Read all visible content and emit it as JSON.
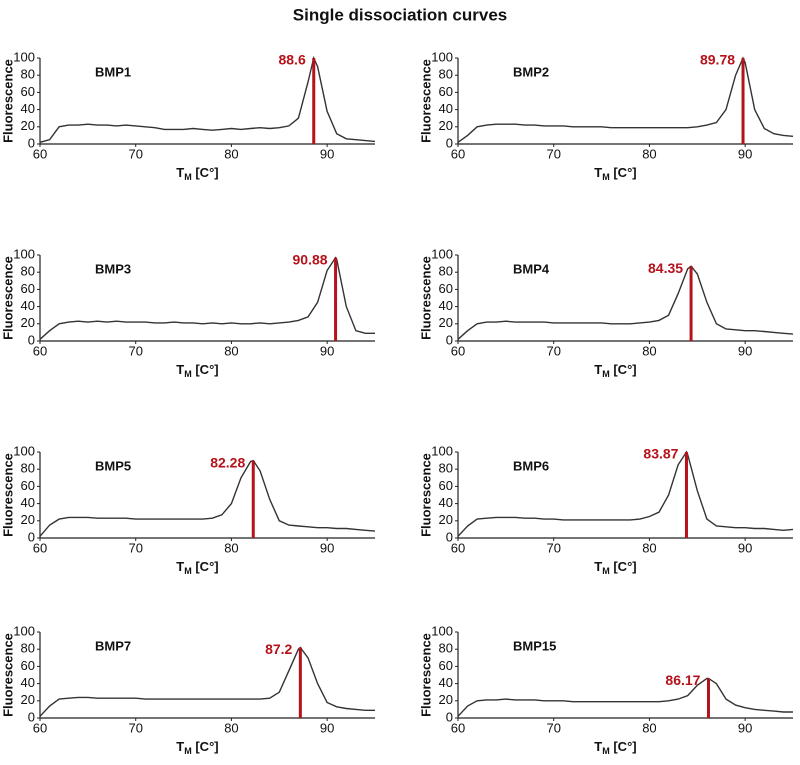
{
  "title": "Single dissociation curves",
  "chart_data": [
    {
      "type": "line",
      "label": "BMP1",
      "ylabel": "Fluorescence",
      "xlabel": [
        "T",
        "M",
        " [C°]"
      ],
      "xlim": [
        60,
        95
      ],
      "ylim": [
        0,
        100
      ],
      "xticks": [
        60,
        70,
        80,
        90
      ],
      "yticks": [
        0,
        20,
        40,
        60,
        80,
        100
      ],
      "color": "#333333",
      "marker": {
        "x": 88.6,
        "y": 100,
        "color": "#b5121b"
      },
      "x": [
        60,
        61,
        62,
        63,
        64,
        65,
        66,
        67,
        68,
        69,
        70,
        71,
        72,
        73,
        74,
        75,
        76,
        77,
        78,
        79,
        80,
        81,
        82,
        83,
        84,
        85,
        86,
        87,
        88,
        88.6,
        89,
        90,
        91,
        92,
        93,
        94,
        95
      ],
      "values": [
        2,
        5,
        20,
        22,
        22,
        23,
        22,
        22,
        21,
        22,
        21,
        20,
        19,
        17,
        17,
        17,
        18,
        17,
        16,
        17,
        18,
        17,
        18,
        19,
        18,
        19,
        21,
        30,
        72,
        100,
        90,
        38,
        12,
        6,
        5,
        4,
        3
      ]
    },
    {
      "type": "line",
      "label": "BMP2",
      "ylabel": "Fluorescence",
      "xlabel": [
        "T",
        "M",
        " [C°]"
      ],
      "xlim": [
        60,
        95
      ],
      "ylim": [
        0,
        100
      ],
      "xticks": [
        60,
        70,
        80,
        90
      ],
      "yticks": [
        0,
        20,
        40,
        60,
        80,
        100
      ],
      "color": "#333333",
      "marker": {
        "x": 89.78,
        "y": 100,
        "color": "#b5121b"
      },
      "x": [
        60,
        61,
        62,
        63,
        64,
        65,
        66,
        67,
        68,
        69,
        70,
        71,
        72,
        73,
        74,
        75,
        76,
        77,
        78,
        79,
        80,
        81,
        82,
        83,
        84,
        85,
        86,
        87,
        88,
        89,
        89.78,
        90,
        91,
        92,
        93,
        94,
        95
      ],
      "values": [
        2,
        10,
        20,
        22,
        23,
        23,
        23,
        22,
        22,
        21,
        21,
        21,
        20,
        20,
        20,
        20,
        19,
        19,
        19,
        19,
        19,
        19,
        19,
        19,
        19,
        20,
        22,
        25,
        40,
        80,
        100,
        95,
        40,
        18,
        12,
        10,
        9
      ]
    },
    {
      "type": "line",
      "label": "BMP3",
      "ylabel": "Fluorescence",
      "xlabel": [
        "T",
        "M",
        " [C°]"
      ],
      "xlim": [
        60,
        95
      ],
      "ylim": [
        0,
        100
      ],
      "xticks": [
        60,
        70,
        80,
        90
      ],
      "yticks": [
        0,
        20,
        40,
        60,
        80,
        100
      ],
      "color": "#333333",
      "marker": {
        "x": 90.88,
        "y": 97,
        "color": "#b5121b"
      },
      "x": [
        60,
        61,
        62,
        63,
        64,
        65,
        66,
        67,
        68,
        69,
        70,
        71,
        72,
        73,
        74,
        75,
        76,
        77,
        78,
        79,
        80,
        81,
        82,
        83,
        84,
        85,
        86,
        87,
        88,
        89,
        90,
        90.88,
        91,
        92,
        93,
        94,
        95
      ],
      "values": [
        2,
        12,
        20,
        22,
        23,
        22,
        23,
        22,
        23,
        22,
        22,
        22,
        21,
        21,
        22,
        21,
        21,
        20,
        21,
        20,
        21,
        20,
        20,
        21,
        20,
        21,
        22,
        24,
        28,
        45,
        82,
        97,
        95,
        40,
        12,
        9,
        9
      ]
    },
    {
      "type": "line",
      "label": "BMP4",
      "ylabel": "Fluorescence",
      "xlabel": [
        "T",
        "M",
        " [C°]"
      ],
      "xlim": [
        60,
        95
      ],
      "ylim": [
        0,
        100
      ],
      "xticks": [
        60,
        70,
        80,
        90
      ],
      "yticks": [
        0,
        20,
        40,
        60,
        80,
        100
      ],
      "color": "#333333",
      "marker": {
        "x": 84.35,
        "y": 87,
        "color": "#b5121b"
      },
      "x": [
        60,
        61,
        62,
        63,
        64,
        65,
        66,
        67,
        68,
        69,
        70,
        71,
        72,
        73,
        74,
        75,
        76,
        77,
        78,
        79,
        80,
        81,
        82,
        83,
        84,
        84.35,
        85,
        86,
        87,
        88,
        89,
        90,
        91,
        92,
        93,
        94,
        95
      ],
      "values": [
        2,
        12,
        20,
        22,
        22,
        23,
        22,
        22,
        22,
        22,
        21,
        21,
        21,
        21,
        21,
        21,
        20,
        20,
        20,
        21,
        22,
        24,
        30,
        55,
        84,
        87,
        78,
        45,
        20,
        14,
        13,
        12,
        12,
        11,
        10,
        9,
        8
      ]
    },
    {
      "type": "line",
      "label": "BMP5",
      "ylabel": "Fluorescence",
      "xlabel": [
        "T",
        "M",
        " [C°]"
      ],
      "xlim": [
        60,
        95
      ],
      "ylim": [
        0,
        100
      ],
      "xticks": [
        60,
        70,
        80,
        90
      ],
      "yticks": [
        0,
        20,
        40,
        60,
        80,
        100
      ],
      "color": "#333333",
      "marker": {
        "x": 82.28,
        "y": 90,
        "color": "#b5121b"
      },
      "x": [
        60,
        61,
        62,
        63,
        64,
        65,
        66,
        67,
        68,
        69,
        70,
        71,
        72,
        73,
        74,
        75,
        76,
        77,
        78,
        79,
        80,
        81,
        82,
        82.28,
        83,
        84,
        85,
        86,
        87,
        88,
        89,
        90,
        91,
        92,
        93,
        94,
        95
      ],
      "values": [
        2,
        15,
        22,
        24,
        24,
        24,
        23,
        23,
        23,
        23,
        22,
        22,
        22,
        22,
        22,
        22,
        22,
        22,
        23,
        27,
        40,
        70,
        89,
        90,
        78,
        45,
        20,
        15,
        14,
        13,
        12,
        12,
        11,
        11,
        10,
        9,
        8
      ]
    },
    {
      "type": "line",
      "label": "BMP6",
      "ylabel": "Fluorescence",
      "xlabel": [
        "T",
        "M",
        " [C°]"
      ],
      "xlim": [
        60,
        95
      ],
      "ylim": [
        0,
        100
      ],
      "xticks": [
        60,
        70,
        80,
        90
      ],
      "yticks": [
        0,
        20,
        40,
        60,
        80,
        100
      ],
      "color": "#333333",
      "marker": {
        "x": 83.87,
        "y": 100,
        "color": "#b5121b"
      },
      "x": [
        60,
        61,
        62,
        63,
        64,
        65,
        66,
        67,
        68,
        69,
        70,
        71,
        72,
        73,
        74,
        75,
        76,
        77,
        78,
        79,
        80,
        81,
        82,
        83,
        83.87,
        84,
        85,
        86,
        87,
        88,
        89,
        90,
        91,
        92,
        93,
        94,
        95
      ],
      "values": [
        2,
        14,
        22,
        23,
        24,
        24,
        24,
        23,
        23,
        22,
        22,
        21,
        21,
        21,
        21,
        21,
        21,
        21,
        21,
        22,
        25,
        30,
        50,
        85,
        100,
        97,
        55,
        22,
        14,
        13,
        12,
        12,
        11,
        11,
        10,
        9,
        10
      ]
    },
    {
      "type": "line",
      "label": "BMP7",
      "ylabel": "Fluorescence",
      "xlabel": [
        "T",
        "M",
        " [C°]"
      ],
      "xlim": [
        60,
        95
      ],
      "ylim": [
        0,
        100
      ],
      "xticks": [
        60,
        70,
        80,
        90
      ],
      "yticks": [
        0,
        20,
        40,
        60,
        80,
        100
      ],
      "color": "#333333",
      "marker": {
        "x": 87.2,
        "y": 82,
        "color": "#b5121b"
      },
      "x": [
        60,
        61,
        62,
        63,
        64,
        65,
        66,
        67,
        68,
        69,
        70,
        71,
        72,
        73,
        74,
        75,
        76,
        77,
        78,
        79,
        80,
        81,
        82,
        83,
        84,
        85,
        86,
        87,
        87.2,
        88,
        89,
        90,
        91,
        92,
        93,
        94,
        95
      ],
      "values": [
        2,
        14,
        22,
        23,
        24,
        24,
        23,
        23,
        23,
        23,
        23,
        22,
        22,
        22,
        22,
        22,
        22,
        22,
        22,
        22,
        22,
        22,
        22,
        22,
        23,
        30,
        55,
        80,
        82,
        70,
        40,
        18,
        13,
        11,
        10,
        9,
        9
      ]
    },
    {
      "type": "line",
      "label": "BMP15",
      "ylabel": "Fluorescence",
      "xlabel": [
        "T",
        "M",
        " [C°]"
      ],
      "xlim": [
        60,
        95
      ],
      "ylim": [
        0,
        100
      ],
      "xticks": [
        60,
        70,
        80,
        90
      ],
      "yticks": [
        0,
        20,
        40,
        60,
        80,
        100
      ],
      "color": "#333333",
      "marker": {
        "x": 86.17,
        "y": 46,
        "color": "#b5121b"
      },
      "x": [
        60,
        61,
        62,
        63,
        64,
        65,
        66,
        67,
        68,
        69,
        70,
        71,
        72,
        73,
        74,
        75,
        76,
        77,
        78,
        79,
        80,
        81,
        82,
        83,
        84,
        85,
        86,
        86.17,
        87,
        88,
        89,
        90,
        91,
        92,
        93,
        94,
        95
      ],
      "values": [
        2,
        14,
        20,
        21,
        21,
        22,
        21,
        21,
        21,
        20,
        20,
        20,
        19,
        19,
        19,
        19,
        19,
        19,
        19,
        19,
        19,
        19,
        20,
        22,
        26,
        38,
        46,
        46,
        40,
        22,
        15,
        12,
        10,
        9,
        8,
        7,
        7
      ]
    }
  ]
}
